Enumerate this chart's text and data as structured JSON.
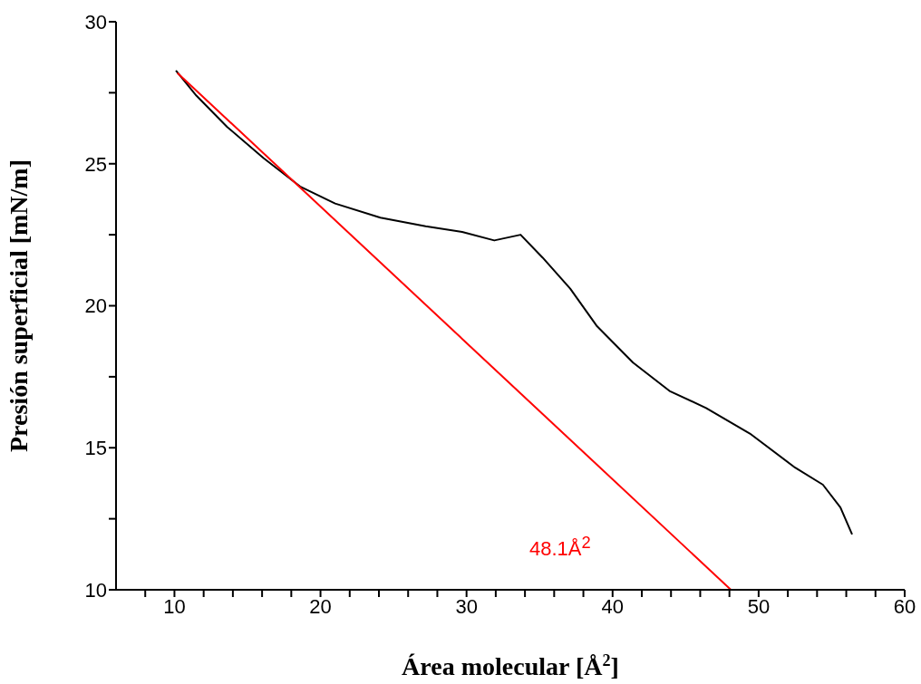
{
  "chart_data": {
    "type": "line",
    "xlabel": "Área molecular [Å$^{2}$]",
    "ylabel": "Presión superficial  [mN/m]",
    "xlim": [
      6,
      60
    ],
    "ylim": [
      10,
      30
    ],
    "xticks": [
      {
        "value": 8,
        "label": null
      },
      10,
      {
        "value": 12,
        "label": null
      },
      {
        "value": 14,
        "label": null
      },
      {
        "value": 16,
        "label": null
      },
      {
        "value": 18,
        "label": null
      },
      20,
      {
        "value": 22,
        "label": null
      },
      {
        "value": 24,
        "label": null
      },
      {
        "value": 26,
        "label": null
      },
      {
        "value": 28,
        "label": null
      },
      30,
      {
        "value": 32,
        "label": null
      },
      {
        "value": 34,
        "label": null
      },
      {
        "value": 36,
        "label": null
      },
      {
        "value": 38,
        "label": null
      },
      40,
      {
        "value": 42,
        "label": null
      },
      {
        "value": 44,
        "label": null
      },
      {
        "value": 46,
        "label": null
      },
      {
        "value": 48,
        "label": null
      },
      50,
      {
        "value": 52,
        "label": null
      },
      {
        "value": 54,
        "label": null
      },
      {
        "value": 56,
        "label": null
      },
      {
        "value": 58,
        "label": null
      },
      60
    ],
    "yticks": [
      10,
      {
        "value": 12.5,
        "label": null
      },
      15,
      {
        "value": 17.5,
        "label": null
      },
      20,
      {
        "value": 22.5,
        "label": null
      },
      25,
      {
        "value": 27.5,
        "label": null
      },
      30
    ],
    "grid": false,
    "marker": "none",
    "line_style": "solid",
    "series": [
      {
        "color": "#000000",
        "x": [
          10.1,
          11.5,
          13.6,
          16.1,
          18.6,
          21.0,
          24.1,
          27.2,
          29.7,
          31.9,
          33.7,
          35.2,
          37.1,
          38.9,
          41.4,
          43.9,
          46.4,
          49.4,
          52.5,
          54.4,
          55.6,
          56.4
        ],
        "values": [
          28.28,
          27.4,
          26.3,
          25.2,
          24.2,
          23.6,
          23.1,
          22.8,
          22.6,
          22.3,
          22.5,
          21.7,
          20.6,
          19.3,
          18.0,
          17.0,
          16.4,
          15.5,
          14.3,
          13.7,
          12.9,
          11.95
        ]
      },
      {
        "color": "#ff0000",
        "x": [
          10.2,
          48.1
        ],
        "values": [
          28.2,
          10
        ]
      }
    ],
    "annotations": [
      "48.1Å$^{2}$"
    ]
  }
}
